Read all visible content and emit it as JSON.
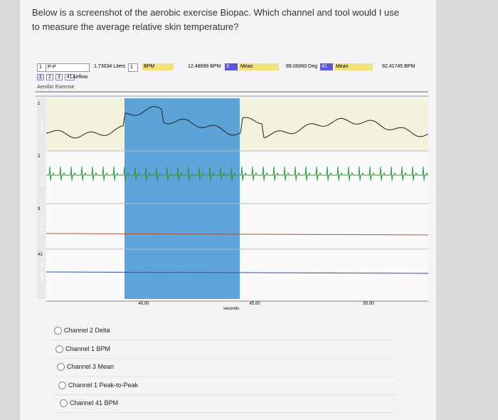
{
  "question": "Below is a screenshot of the aerobic exercise Biopac. Which channel and tool would I use to measure the average relative skin temperature?",
  "toolbar": {
    "ch_a": "1",
    "tool_a": "P-P",
    "value_a": "1.73034 Liters",
    "ch_b": "1",
    "tool_b": "BPM",
    "value_b": "12.48699 BPM",
    "ch_c": "3",
    "tool_c": "Mean",
    "value_c": "89.00060 Deg",
    "ch_d": "41",
    "tool_d": "Mean",
    "value_d": "92.41745 BPM"
  },
  "channel_tabs": [
    "1",
    "2",
    "3",
    "41"
  ],
  "selected_channel": "Airflow",
  "file_name": "Aerobic Exercise",
  "channels": [
    {
      "number": "1",
      "label": "Airflow"
    },
    {
      "number": "2",
      "label": "ECG"
    },
    {
      "number": "3",
      "label": "Skin Temp"
    },
    {
      "number": "41",
      "label": "Heart Rate"
    }
  ],
  "x_axis": {
    "ticks": [
      "40.00",
      "45.00",
      "50.00"
    ],
    "label": "seconds"
  },
  "options": [
    "Channel 2 Delta",
    "Channel 1 BPM",
    "Channel 3 Mean",
    "Channel 1 Peak-to-Peak",
    "Channel 41 BPM"
  ]
}
